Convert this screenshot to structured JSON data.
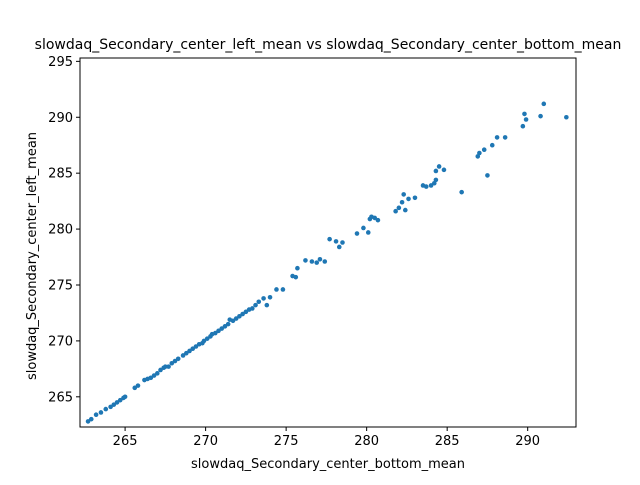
{
  "chart_data": {
    "type": "scatter",
    "title": "slowdaq_Secondary_center_left_mean vs slowdaq_Secondary_center_bottom_mean",
    "xlabel": "slowdaq_Secondary_center_bottom_mean",
    "ylabel": "slowdaq_Secondary_center_left_mean",
    "xlim": [
      262.2,
      593
    ],
    "ylim": [
      262.3,
      295.3
    ],
    "xticks": [
      265,
      270,
      275,
      280,
      285,
      290
    ],
    "yticks": [
      265,
      270,
      275,
      280,
      285,
      290,
      295
    ],
    "grid": false,
    "legend": "none",
    "color": "#1f77b4",
    "series": [
      {
        "points": [
          [
            262.7,
            262.8
          ],
          [
            262.9,
            263.0
          ],
          [
            263.2,
            263.4
          ],
          [
            263.5,
            263.6
          ],
          [
            263.8,
            263.9
          ],
          [
            264.1,
            264.1
          ],
          [
            264.3,
            264.3
          ],
          [
            264.5,
            264.5
          ],
          [
            264.7,
            264.7
          ],
          [
            264.9,
            264.9
          ],
          [
            265.0,
            265.0
          ],
          [
            265.6,
            265.8
          ],
          [
            265.8,
            266.0
          ],
          [
            266.2,
            266.5
          ],
          [
            266.4,
            266.6
          ],
          [
            266.6,
            266.7
          ],
          [
            266.8,
            266.9
          ],
          [
            267.0,
            267.1
          ],
          [
            267.2,
            267.4
          ],
          [
            267.4,
            267.6
          ],
          [
            267.5,
            267.7
          ],
          [
            267.7,
            267.7
          ],
          [
            267.9,
            268.0
          ],
          [
            268.1,
            268.2
          ],
          [
            268.3,
            268.4
          ],
          [
            268.6,
            268.7
          ],
          [
            268.8,
            268.9
          ],
          [
            269.0,
            269.1
          ],
          [
            269.2,
            269.3
          ],
          [
            269.4,
            269.5
          ],
          [
            269.6,
            269.7
          ],
          [
            269.8,
            269.8
          ],
          [
            269.9,
            270.0
          ],
          [
            270.1,
            270.2
          ],
          [
            270.3,
            270.4
          ],
          [
            270.4,
            270.6
          ],
          [
            270.6,
            270.7
          ],
          [
            270.8,
            270.9
          ],
          [
            271.0,
            271.1
          ],
          [
            271.2,
            271.3
          ],
          [
            271.4,
            271.5
          ],
          [
            271.5,
            271.9
          ],
          [
            271.7,
            271.8
          ],
          [
            271.9,
            272.0
          ],
          [
            272.1,
            272.2
          ],
          [
            272.3,
            272.4
          ],
          [
            272.5,
            272.6
          ],
          [
            272.7,
            272.8
          ],
          [
            272.9,
            272.9
          ],
          [
            273.1,
            273.2
          ],
          [
            273.3,
            273.5
          ],
          [
            273.6,
            273.8
          ],
          [
            273.8,
            273.2
          ],
          [
            274.0,
            273.9
          ],
          [
            274.4,
            274.6
          ],
          [
            274.8,
            274.6
          ],
          [
            275.4,
            275.8
          ],
          [
            275.6,
            275.7
          ],
          [
            275.7,
            276.5
          ],
          [
            276.2,
            277.2
          ],
          [
            276.6,
            277.1
          ],
          [
            276.9,
            277.0
          ],
          [
            277.1,
            277.3
          ],
          [
            277.4,
            277.1
          ],
          [
            277.7,
            279.1
          ],
          [
            278.1,
            278.9
          ],
          [
            278.3,
            278.4
          ],
          [
            278.5,
            278.8
          ],
          [
            279.4,
            279.6
          ],
          [
            279.8,
            280.1
          ],
          [
            280.1,
            279.7
          ],
          [
            280.2,
            280.9
          ],
          [
            280.3,
            281.1
          ],
          [
            280.5,
            281.0
          ],
          [
            280.7,
            280.8
          ],
          [
            281.8,
            281.6
          ],
          [
            282.0,
            281.9
          ],
          [
            282.2,
            282.4
          ],
          [
            282.3,
            283.1
          ],
          [
            282.4,
            281.7
          ],
          [
            282.6,
            282.7
          ],
          [
            283.0,
            282.8
          ],
          [
            283.5,
            283.9
          ],
          [
            283.7,
            283.8
          ],
          [
            284.0,
            283.9
          ],
          [
            284.2,
            284.1
          ],
          [
            284.3,
            284.4
          ],
          [
            284.3,
            285.2
          ],
          [
            284.5,
            285.6
          ],
          [
            284.8,
            285.3
          ],
          [
            285.9,
            283.3
          ],
          [
            286.9,
            286.5
          ],
          [
            287.0,
            286.8
          ],
          [
            287.3,
            287.1
          ],
          [
            287.5,
            284.8
          ],
          [
            287.8,
            287.5
          ],
          [
            288.1,
            288.2
          ],
          [
            288.6,
            288.2
          ],
          [
            289.7,
            289.2
          ],
          [
            289.8,
            290.3
          ],
          [
            289.9,
            289.8
          ],
          [
            290.8,
            290.1
          ],
          [
            291.0,
            291.2
          ],
          [
            292.4,
            290.0
          ]
        ]
      }
    ]
  }
}
